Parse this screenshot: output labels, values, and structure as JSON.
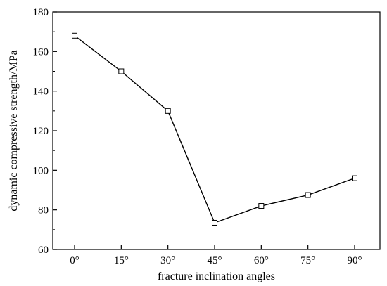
{
  "chart_data": {
    "type": "line",
    "title": "",
    "xlabel": "fracture inclination angles",
    "ylabel": "dynamic compressive strength/MPa",
    "categories": [
      "0°",
      "15°",
      "30°",
      "45°",
      "60°",
      "75°",
      "90°"
    ],
    "series": [
      {
        "values": [
          168,
          150,
          130,
          73.5,
          82,
          87.5,
          96
        ]
      }
    ],
    "ylim": [
      60,
      180
    ],
    "yticks": [
      "60",
      "80",
      "100",
      "120",
      "140",
      "160",
      "180"
    ],
    "marker": "open-square",
    "grid": false,
    "legend": "none",
    "colors": {
      "line": "#000000",
      "marker_fill": "#ffffff"
    }
  }
}
